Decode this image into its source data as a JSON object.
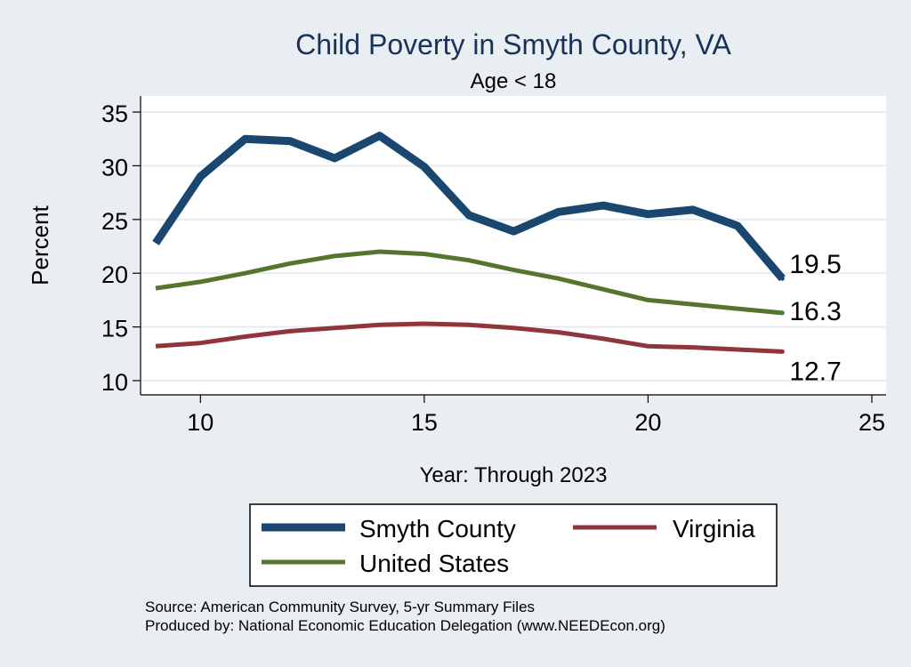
{
  "chart_data": {
    "type": "line",
    "title": "Child Poverty in Smyth County, VA",
    "subtitle": "Age < 18",
    "xlabel": "Year: Through 2023",
    "ylabel": "Percent",
    "xlim": [
      9,
      25
    ],
    "ylim": [
      10,
      35
    ],
    "xticks": [
      10,
      15,
      20,
      25
    ],
    "yticks": [
      10,
      15,
      20,
      25,
      30,
      35
    ],
    "grid": "horizontal",
    "legend_position": "bottom",
    "x": [
      9,
      10,
      11,
      12,
      13,
      14,
      15,
      16,
      17,
      18,
      19,
      20,
      21,
      22,
      23
    ],
    "series": [
      {
        "name": "Smyth County",
        "color": "#1a476f",
        "values": [
          22.8,
          29.0,
          32.5,
          32.3,
          30.7,
          32.8,
          29.9,
          25.4,
          23.9,
          25.7,
          26.3,
          25.5,
          25.9,
          24.4,
          19.5
        ],
        "end_label": "19.5"
      },
      {
        "name": "Virginia",
        "color": "#90353b",
        "values": [
          13.2,
          13.5,
          14.1,
          14.6,
          14.9,
          15.2,
          15.3,
          15.2,
          14.9,
          14.5,
          13.9,
          13.2,
          13.1,
          12.9,
          12.7
        ],
        "end_label": "12.7"
      },
      {
        "name": "United States",
        "color": "#55752f",
        "values": [
          18.6,
          19.2,
          20.0,
          20.9,
          21.6,
          22.0,
          21.8,
          21.2,
          20.3,
          19.5,
          18.5,
          17.5,
          17.1,
          16.7,
          16.3
        ],
        "end_label": "16.3"
      }
    ],
    "notes": [
      "Source: American Community Survey, 5-yr Summary Files",
      "Produced by: National Economic Education Delegation (www.NEEDEcon.org)"
    ]
  }
}
